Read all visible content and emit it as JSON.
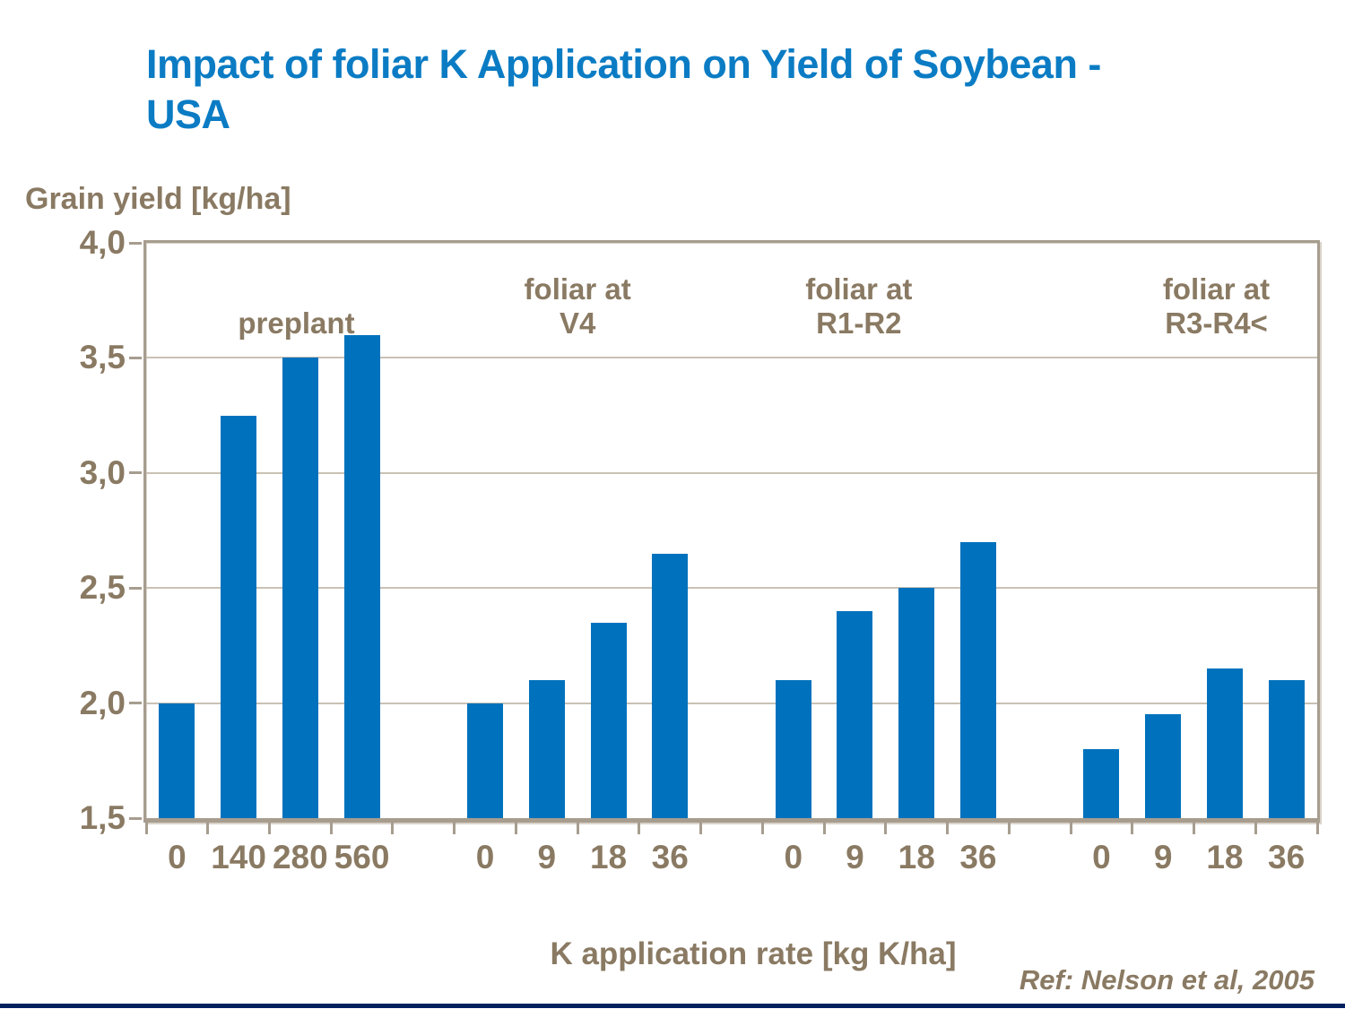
{
  "header": {
    "title_line1": "Impact of foliar K Application on Yield of Soybean -",
    "title_line2": "USA"
  },
  "axis_titles": {
    "y": "Grain yield [kg/ha]",
    "x": "K application rate [kg K/ha]"
  },
  "reference": "Ref: Nelson et al, 2005",
  "colors": {
    "title_blue": "#0b7cc4",
    "bar_blue": "#0072bd",
    "taupe_text": "#8a7a63",
    "grid_line": "#c9c1b5",
    "plot_border": "#a79d8f",
    "footer_bar": "#002060",
    "background": "#ffffff"
  },
  "chart_data": {
    "type": "bar",
    "title": "Impact of foliar K Application on Yield of Soybean - USA",
    "ylabel": "Grain yield [kg/ha]",
    "xlabel": "K application rate [kg K/ha]",
    "ylim": [
      1.5,
      4.0
    ],
    "ytick_step": 0.5,
    "yticks": [
      {
        "value": 4.0,
        "label": "4,0"
      },
      {
        "value": 3.5,
        "label": "3,5"
      },
      {
        "value": 3.0,
        "label": "3,0"
      },
      {
        "value": 2.5,
        "label": "2,5"
      },
      {
        "value": 2.0,
        "label": "2,0"
      },
      {
        "value": 1.5,
        "label": "1,5"
      }
    ],
    "grid": true,
    "legend": "none",
    "groups": [
      {
        "label_lines": [
          "preplant"
        ],
        "categories": [
          "0",
          "140",
          "280",
          "560"
        ],
        "values": [
          2.0,
          3.25,
          3.5,
          3.6
        ]
      },
      {
        "label_lines": [
          "foliar at",
          "V4"
        ],
        "categories": [
          "0",
          "9",
          "18",
          "36"
        ],
        "values": [
          2.0,
          2.1,
          2.35,
          2.65
        ]
      },
      {
        "label_lines": [
          "foliar at",
          "R1-R2"
        ],
        "categories": [
          "0",
          "9",
          "18",
          "36"
        ],
        "values": [
          2.1,
          2.4,
          2.5,
          2.7
        ]
      },
      {
        "label_lines": [
          "foliar at",
          "R3-R4<"
        ],
        "categories": [
          "0",
          "9",
          "18",
          "36"
        ],
        "values": [
          1.8,
          1.95,
          2.15,
          2.1
        ]
      }
    ]
  }
}
